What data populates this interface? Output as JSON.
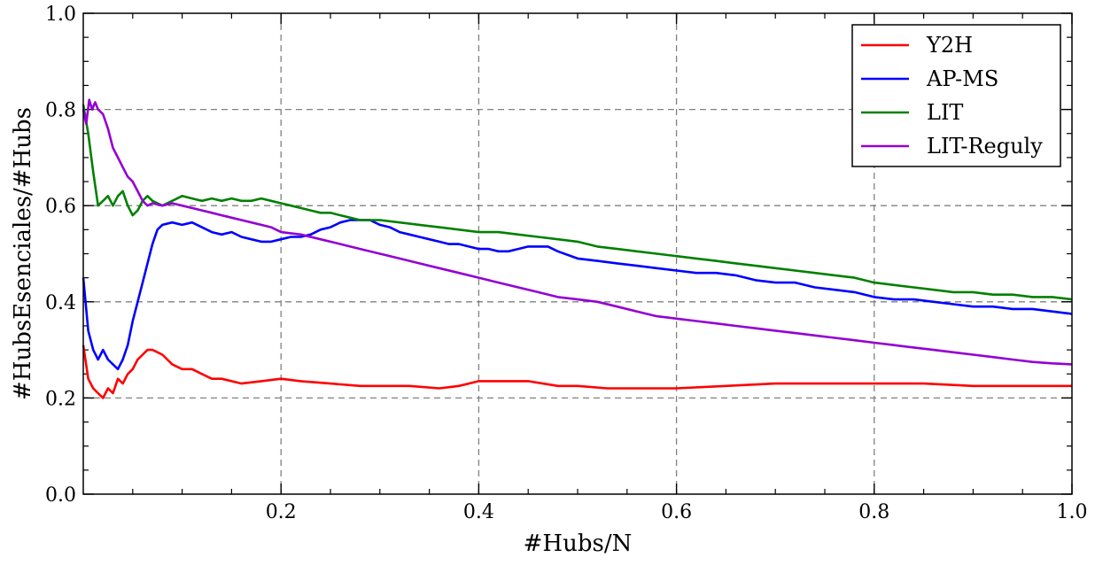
{
  "chart_data": {
    "type": "line",
    "xlabel": "#Hubs/N",
    "ylabel": "#HubsEsenciales/#Hubs",
    "xlim": [
      0.0,
      1.0
    ],
    "ylim": [
      0.0,
      1.0
    ],
    "x_ticks": [
      "0.2",
      "0.4",
      "0.6",
      "0.8",
      "1.0"
    ],
    "y_ticks": [
      "0.0",
      "0.2",
      "0.4",
      "0.6",
      "0.8",
      "1.0"
    ],
    "grid": true,
    "legend_position": "top-right",
    "series": [
      {
        "name": "Y2H",
        "color": "#ff0000",
        "points": [
          [
            0.0,
            0.31
          ],
          [
            0.005,
            0.24
          ],
          [
            0.01,
            0.22
          ],
          [
            0.015,
            0.21
          ],
          [
            0.02,
            0.2
          ],
          [
            0.025,
            0.22
          ],
          [
            0.03,
            0.21
          ],
          [
            0.035,
            0.24
          ],
          [
            0.04,
            0.23
          ],
          [
            0.045,
            0.25
          ],
          [
            0.05,
            0.26
          ],
          [
            0.055,
            0.28
          ],
          [
            0.06,
            0.29
          ],
          [
            0.065,
            0.3
          ],
          [
            0.07,
            0.3
          ],
          [
            0.08,
            0.29
          ],
          [
            0.09,
            0.27
          ],
          [
            0.1,
            0.26
          ],
          [
            0.11,
            0.26
          ],
          [
            0.12,
            0.25
          ],
          [
            0.13,
            0.24
          ],
          [
            0.14,
            0.24
          ],
          [
            0.15,
            0.235
          ],
          [
            0.16,
            0.23
          ],
          [
            0.18,
            0.235
          ],
          [
            0.2,
            0.24
          ],
          [
            0.22,
            0.235
          ],
          [
            0.25,
            0.23
          ],
          [
            0.28,
            0.225
          ],
          [
            0.3,
            0.225
          ],
          [
            0.33,
            0.225
          ],
          [
            0.36,
            0.22
          ],
          [
            0.38,
            0.225
          ],
          [
            0.4,
            0.235
          ],
          [
            0.42,
            0.235
          ],
          [
            0.45,
            0.235
          ],
          [
            0.48,
            0.225
          ],
          [
            0.5,
            0.225
          ],
          [
            0.53,
            0.22
          ],
          [
            0.56,
            0.22
          ],
          [
            0.6,
            0.22
          ],
          [
            0.65,
            0.225
          ],
          [
            0.7,
            0.23
          ],
          [
            0.75,
            0.23
          ],
          [
            0.8,
            0.23
          ],
          [
            0.85,
            0.23
          ],
          [
            0.9,
            0.225
          ],
          [
            0.95,
            0.225
          ],
          [
            1.0,
            0.225
          ]
        ]
      },
      {
        "name": "AP-MS",
        "color": "#0000ff",
        "points": [
          [
            0.0,
            0.45
          ],
          [
            0.005,
            0.34
          ],
          [
            0.01,
            0.3
          ],
          [
            0.015,
            0.28
          ],
          [
            0.02,
            0.3
          ],
          [
            0.025,
            0.28
          ],
          [
            0.03,
            0.27
          ],
          [
            0.035,
            0.26
          ],
          [
            0.04,
            0.28
          ],
          [
            0.045,
            0.31
          ],
          [
            0.05,
            0.36
          ],
          [
            0.055,
            0.4
          ],
          [
            0.06,
            0.44
          ],
          [
            0.065,
            0.48
          ],
          [
            0.07,
            0.52
          ],
          [
            0.075,
            0.55
          ],
          [
            0.08,
            0.56
          ],
          [
            0.09,
            0.565
          ],
          [
            0.1,
            0.56
          ],
          [
            0.11,
            0.565
          ],
          [
            0.12,
            0.555
          ],
          [
            0.13,
            0.545
          ],
          [
            0.14,
            0.54
          ],
          [
            0.15,
            0.545
          ],
          [
            0.16,
            0.535
          ],
          [
            0.17,
            0.53
          ],
          [
            0.18,
            0.525
          ],
          [
            0.19,
            0.525
          ],
          [
            0.2,
            0.53
          ],
          [
            0.21,
            0.535
          ],
          [
            0.22,
            0.535
          ],
          [
            0.23,
            0.54
          ],
          [
            0.24,
            0.55
          ],
          [
            0.25,
            0.555
          ],
          [
            0.26,
            0.565
          ],
          [
            0.27,
            0.57
          ],
          [
            0.28,
            0.57
          ],
          [
            0.29,
            0.57
          ],
          [
            0.3,
            0.56
          ],
          [
            0.31,
            0.555
          ],
          [
            0.32,
            0.545
          ],
          [
            0.33,
            0.54
          ],
          [
            0.34,
            0.535
          ],
          [
            0.35,
            0.53
          ],
          [
            0.36,
            0.525
          ],
          [
            0.37,
            0.52
          ],
          [
            0.38,
            0.52
          ],
          [
            0.39,
            0.515
          ],
          [
            0.4,
            0.51
          ],
          [
            0.41,
            0.51
          ],
          [
            0.42,
            0.505
          ],
          [
            0.43,
            0.505
          ],
          [
            0.44,
            0.51
          ],
          [
            0.45,
            0.515
          ],
          [
            0.46,
            0.515
          ],
          [
            0.47,
            0.515
          ],
          [
            0.48,
            0.505
          ],
          [
            0.5,
            0.49
          ],
          [
            0.52,
            0.485
          ],
          [
            0.54,
            0.48
          ],
          [
            0.56,
            0.475
          ],
          [
            0.58,
            0.47
          ],
          [
            0.6,
            0.465
          ],
          [
            0.62,
            0.46
          ],
          [
            0.64,
            0.46
          ],
          [
            0.66,
            0.455
          ],
          [
            0.68,
            0.445
          ],
          [
            0.7,
            0.44
          ],
          [
            0.72,
            0.44
          ],
          [
            0.74,
            0.43
          ],
          [
            0.76,
            0.425
          ],
          [
            0.78,
            0.42
          ],
          [
            0.8,
            0.41
          ],
          [
            0.82,
            0.405
          ],
          [
            0.84,
            0.405
          ],
          [
            0.86,
            0.4
          ],
          [
            0.88,
            0.395
          ],
          [
            0.9,
            0.39
          ],
          [
            0.92,
            0.39
          ],
          [
            0.94,
            0.385
          ],
          [
            0.96,
            0.385
          ],
          [
            0.98,
            0.38
          ],
          [
            1.0,
            0.375
          ]
        ]
      },
      {
        "name": "LIT",
        "color": "#008000",
        "points": [
          [
            0.0,
            0.81
          ],
          [
            0.005,
            0.75
          ],
          [
            0.01,
            0.67
          ],
          [
            0.015,
            0.6
          ],
          [
            0.02,
            0.61
          ],
          [
            0.025,
            0.62
          ],
          [
            0.03,
            0.6
          ],
          [
            0.035,
            0.62
          ],
          [
            0.04,
            0.63
          ],
          [
            0.045,
            0.6
          ],
          [
            0.05,
            0.58
          ],
          [
            0.055,
            0.59
          ],
          [
            0.06,
            0.61
          ],
          [
            0.065,
            0.62
          ],
          [
            0.07,
            0.61
          ],
          [
            0.08,
            0.6
          ],
          [
            0.09,
            0.61
          ],
          [
            0.1,
            0.62
          ],
          [
            0.11,
            0.615
          ],
          [
            0.12,
            0.61
          ],
          [
            0.13,
            0.615
          ],
          [
            0.14,
            0.61
          ],
          [
            0.15,
            0.615
          ],
          [
            0.16,
            0.61
          ],
          [
            0.17,
            0.61
          ],
          [
            0.18,
            0.615
          ],
          [
            0.19,
            0.61
          ],
          [
            0.2,
            0.605
          ],
          [
            0.21,
            0.6
          ],
          [
            0.22,
            0.595
          ],
          [
            0.23,
            0.59
          ],
          [
            0.24,
            0.585
          ],
          [
            0.25,
            0.585
          ],
          [
            0.26,
            0.58
          ],
          [
            0.27,
            0.575
          ],
          [
            0.28,
            0.57
          ],
          [
            0.29,
            0.57
          ],
          [
            0.3,
            0.57
          ],
          [
            0.32,
            0.565
          ],
          [
            0.34,
            0.56
          ],
          [
            0.36,
            0.555
          ],
          [
            0.38,
            0.55
          ],
          [
            0.4,
            0.545
          ],
          [
            0.42,
            0.545
          ],
          [
            0.44,
            0.54
          ],
          [
            0.46,
            0.535
          ],
          [
            0.48,
            0.53
          ],
          [
            0.5,
            0.525
          ],
          [
            0.52,
            0.515
          ],
          [
            0.54,
            0.51
          ],
          [
            0.56,
            0.505
          ],
          [
            0.58,
            0.5
          ],
          [
            0.6,
            0.495
          ],
          [
            0.62,
            0.49
          ],
          [
            0.64,
            0.485
          ],
          [
            0.66,
            0.48
          ],
          [
            0.68,
            0.475
          ],
          [
            0.7,
            0.47
          ],
          [
            0.72,
            0.465
          ],
          [
            0.74,
            0.46
          ],
          [
            0.76,
            0.455
          ],
          [
            0.78,
            0.45
          ],
          [
            0.8,
            0.44
          ],
          [
            0.82,
            0.435
          ],
          [
            0.84,
            0.43
          ],
          [
            0.86,
            0.425
          ],
          [
            0.88,
            0.42
          ],
          [
            0.9,
            0.42
          ],
          [
            0.92,
            0.415
          ],
          [
            0.94,
            0.415
          ],
          [
            0.96,
            0.41
          ],
          [
            0.98,
            0.41
          ],
          [
            1.0,
            0.405
          ]
        ]
      },
      {
        "name": "LIT-Reguly",
        "color": "#9400d3",
        "points": [
          [
            0.0,
            0.8
          ],
          [
            0.003,
            0.77
          ],
          [
            0.006,
            0.82
          ],
          [
            0.009,
            0.8
          ],
          [
            0.012,
            0.815
          ],
          [
            0.015,
            0.8
          ],
          [
            0.02,
            0.79
          ],
          [
            0.025,
            0.76
          ],
          [
            0.03,
            0.72
          ],
          [
            0.035,
            0.7
          ],
          [
            0.04,
            0.68
          ],
          [
            0.045,
            0.66
          ],
          [
            0.05,
            0.65
          ],
          [
            0.055,
            0.63
          ],
          [
            0.06,
            0.61
          ],
          [
            0.065,
            0.6
          ],
          [
            0.07,
            0.605
          ],
          [
            0.08,
            0.6
          ],
          [
            0.09,
            0.605
          ],
          [
            0.1,
            0.6
          ],
          [
            0.11,
            0.595
          ],
          [
            0.12,
            0.59
          ],
          [
            0.13,
            0.585
          ],
          [
            0.14,
            0.58
          ],
          [
            0.15,
            0.575
          ],
          [
            0.16,
            0.57
          ],
          [
            0.17,
            0.565
          ],
          [
            0.18,
            0.56
          ],
          [
            0.19,
            0.555
          ],
          [
            0.2,
            0.545
          ],
          [
            0.22,
            0.54
          ],
          [
            0.24,
            0.53
          ],
          [
            0.26,
            0.52
          ],
          [
            0.28,
            0.51
          ],
          [
            0.3,
            0.5
          ],
          [
            0.32,
            0.49
          ],
          [
            0.34,
            0.48
          ],
          [
            0.36,
            0.47
          ],
          [
            0.38,
            0.46
          ],
          [
            0.4,
            0.45
          ],
          [
            0.42,
            0.44
          ],
          [
            0.44,
            0.43
          ],
          [
            0.46,
            0.42
          ],
          [
            0.48,
            0.41
          ],
          [
            0.5,
            0.405
          ],
          [
            0.52,
            0.4
          ],
          [
            0.54,
            0.39
          ],
          [
            0.56,
            0.38
          ],
          [
            0.58,
            0.37
          ],
          [
            0.6,
            0.365
          ],
          [
            0.62,
            0.36
          ],
          [
            0.64,
            0.355
          ],
          [
            0.66,
            0.35
          ],
          [
            0.68,
            0.345
          ],
          [
            0.7,
            0.34
          ],
          [
            0.72,
            0.335
          ],
          [
            0.74,
            0.33
          ],
          [
            0.76,
            0.325
          ],
          [
            0.78,
            0.32
          ],
          [
            0.8,
            0.315
          ],
          [
            0.82,
            0.31
          ],
          [
            0.84,
            0.305
          ],
          [
            0.86,
            0.3
          ],
          [
            0.88,
            0.295
          ],
          [
            0.9,
            0.29
          ],
          [
            0.92,
            0.285
          ],
          [
            0.94,
            0.28
          ],
          [
            0.96,
            0.275
          ],
          [
            0.98,
            0.272
          ],
          [
            1.0,
            0.27
          ]
        ]
      }
    ]
  }
}
